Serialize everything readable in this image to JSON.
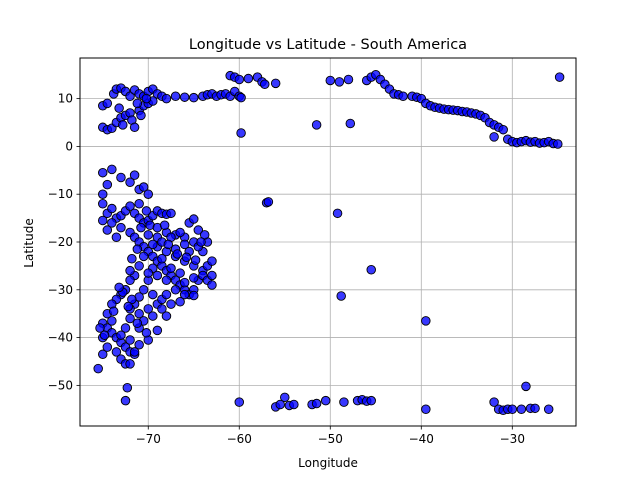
{
  "chart_data": {
    "type": "scatter",
    "title": "Longitude vs Latitude - South America",
    "xlabel": "Longitude",
    "ylabel": "Latitude",
    "xlim": [
      -77.5,
      -23.0
    ],
    "ylim": [
      -58.5,
      18.5
    ],
    "xticks": [
      -70,
      -60,
      -50,
      -40,
      -30
    ],
    "yticks": [
      -50,
      -40,
      -30,
      -20,
      -10,
      0,
      10
    ],
    "grid": true,
    "legend": "none",
    "marker_color": "#0000ff",
    "marker_edge": "#000000",
    "points": [
      [
        -75.0,
        8.5
      ],
      [
        -74.5,
        9.0
      ],
      [
        -73.8,
        11.0
      ],
      [
        -73.5,
        12.0
      ],
      [
        -73.0,
        12.2
      ],
      [
        -72.5,
        11.5
      ],
      [
        -72.0,
        10.5
      ],
      [
        -71.5,
        11.8
      ],
      [
        -71.0,
        11.0
      ],
      [
        -70.5,
        10.5
      ],
      [
        -70.0,
        11.5
      ],
      [
        -69.5,
        12.0
      ],
      [
        -69.0,
        11.0
      ],
      [
        -68.5,
        10.5
      ],
      [
        -68.0,
        10.0
      ],
      [
        -67.0,
        10.5
      ],
      [
        -66.0,
        10.3
      ],
      [
        -65.0,
        10.2
      ],
      [
        -64.0,
        10.5
      ],
      [
        -63.5,
        10.8
      ],
      [
        -63.0,
        11.0
      ],
      [
        -62.5,
        10.5
      ],
      [
        -62.0,
        10.8
      ],
      [
        -61.5,
        11.0
      ],
      [
        -61.0,
        10.5
      ],
      [
        -60.5,
        11.5
      ],
      [
        -60.0,
        10.5
      ],
      [
        -59.8,
        10.2
      ],
      [
        -61.0,
        14.8
      ],
      [
        -60.5,
        14.5
      ],
      [
        -60.0,
        14.0
      ],
      [
        -59.0,
        14.2
      ],
      [
        -58.0,
        14.5
      ],
      [
        -57.5,
        13.5
      ],
      [
        -57.2,
        13.0
      ],
      [
        -56.0,
        13.2
      ],
      [
        -50.0,
        13.8
      ],
      [
        -49.0,
        13.5
      ],
      [
        -48.0,
        14.0
      ],
      [
        -46.0,
        13.8
      ],
      [
        -45.5,
        14.5
      ],
      [
        -45.0,
        15.0
      ],
      [
        -44.5,
        14.0
      ],
      [
        -44.0,
        13.0
      ],
      [
        -43.5,
        12.0
      ],
      [
        -43.0,
        11.0
      ],
      [
        -42.5,
        10.8
      ],
      [
        -42.0,
        10.5
      ],
      [
        -41.0,
        10.5
      ],
      [
        -40.5,
        10.3
      ],
      [
        -40.0,
        10.0
      ],
      [
        -39.5,
        9.0
      ],
      [
        -39.0,
        8.5
      ],
      [
        -38.5,
        8.2
      ],
      [
        -38.0,
        8.0
      ],
      [
        -37.5,
        7.8
      ],
      [
        -37.0,
        7.7
      ],
      [
        -36.5,
        7.6
      ],
      [
        -36.0,
        7.5
      ],
      [
        -35.5,
        7.3
      ],
      [
        -35.0,
        7.2
      ],
      [
        -34.5,
        7.0
      ],
      [
        -34.0,
        6.8
      ],
      [
        -33.5,
        6.5
      ],
      [
        -33.0,
        6.0
      ],
      [
        -32.5,
        5.0
      ],
      [
        -32.0,
        4.5
      ],
      [
        -31.5,
        4.0
      ],
      [
        -31.0,
        3.5
      ],
      [
        -30.5,
        1.5
      ],
      [
        -30.0,
        1.0
      ],
      [
        -29.5,
        0.8
      ],
      [
        -29.0,
        1.0
      ],
      [
        -28.5,
        1.2
      ],
      [
        -28.0,
        0.9
      ],
      [
        -27.5,
        1.0
      ],
      [
        -27.0,
        0.7
      ],
      [
        -26.5,
        0.8
      ],
      [
        -26.0,
        1.0
      ],
      [
        -25.5,
        0.6
      ],
      [
        -25.0,
        0.5
      ],
      [
        -24.8,
        14.5
      ],
      [
        -32.0,
        2.0
      ],
      [
        -59.8,
        2.8
      ],
      [
        -51.5,
        4.5
      ],
      [
        -47.8,
        4.8
      ],
      [
        -75.0,
        4.0
      ],
      [
        -74.5,
        3.5
      ],
      [
        -74.0,
        3.8
      ],
      [
        -73.5,
        5.0
      ],
      [
        -73.0,
        6.0
      ],
      [
        -72.5,
        6.5
      ],
      [
        -72.0,
        7.0
      ],
      [
        -71.8,
        5.5
      ],
      [
        -71.5,
        4.0
      ],
      [
        -71.0,
        7.5
      ],
      [
        -70.5,
        8.5
      ],
      [
        -70.0,
        9.0
      ],
      [
        -69.5,
        9.5
      ],
      [
        -72.8,
        4.5
      ],
      [
        -73.2,
        8.0
      ],
      [
        -71.2,
        9.0
      ],
      [
        -70.8,
        6.5
      ],
      [
        -70.2,
        10.0
      ],
      [
        -75.0,
        -5.5
      ],
      [
        -74.5,
        -8.0
      ],
      [
        -75.0,
        -10.0
      ],
      [
        -74.0,
        -4.8
      ],
      [
        -73.0,
        -6.5
      ],
      [
        -72.0,
        -7.5
      ],
      [
        -71.5,
        -6.0
      ],
      [
        -71.0,
        -9.0
      ],
      [
        -70.5,
        -8.5
      ],
      [
        -70.0,
        -10.0
      ],
      [
        -75.0,
        -12.0
      ],
      [
        -74.5,
        -14.0
      ],
      [
        -74.0,
        -13.0
      ],
      [
        -73.5,
        -15.0
      ],
      [
        -73.0,
        -14.5
      ],
      [
        -72.5,
        -13.5
      ],
      [
        -72.0,
        -12.5
      ],
      [
        -71.5,
        -14.0
      ],
      [
        -71.0,
        -15.0
      ],
      [
        -70.5,
        -16.0
      ],
      [
        -70.0,
        -15.5
      ],
      [
        -69.5,
        -14.5
      ],
      [
        -69.0,
        -13.5
      ],
      [
        -68.5,
        -14.0
      ],
      [
        -68.0,
        -14.2
      ],
      [
        -67.5,
        -14.0
      ],
      [
        -75.0,
        -15.5
      ],
      [
        -74.0,
        -16.0
      ],
      [
        -73.0,
        -17.0
      ],
      [
        -72.0,
        -18.0
      ],
      [
        -71.5,
        -19.0
      ],
      [
        -71.0,
        -20.0
      ],
      [
        -70.5,
        -21.0
      ],
      [
        -70.0,
        -22.0
      ],
      [
        -69.5,
        -23.0
      ],
      [
        -69.0,
        -24.0
      ],
      [
        -68.5,
        -25.0
      ],
      [
        -68.0,
        -26.0
      ],
      [
        -67.5,
        -27.0
      ],
      [
        -67.0,
        -28.0
      ],
      [
        -66.5,
        -29.0
      ],
      [
        -66.0,
        -30.0
      ],
      [
        -65.5,
        -31.0
      ],
      [
        -65.0,
        -30.0
      ],
      [
        -64.5,
        -28.0
      ],
      [
        -64.0,
        -26.0
      ],
      [
        -63.5,
        -25.0
      ],
      [
        -63.0,
        -24.0
      ],
      [
        -64.0,
        -22.0
      ],
      [
        -65.0,
        -20.0
      ],
      [
        -66.0,
        -19.0
      ],
      [
        -67.0,
        -18.5
      ],
      [
        -68.0,
        -18.0
      ],
      [
        -69.0,
        -19.0
      ],
      [
        -70.0,
        -18.5
      ],
      [
        -69.0,
        -21.0
      ],
      [
        -68.0,
        -22.0
      ],
      [
        -67.0,
        -23.0
      ],
      [
        -66.0,
        -24.0
      ],
      [
        -65.0,
        -25.0
      ],
      [
        -64.0,
        -27.0
      ],
      [
        -63.5,
        -28.0
      ],
      [
        -63.0,
        -29.0
      ],
      [
        -63.0,
        -27.0
      ],
      [
        -63.5,
        -20.0
      ],
      [
        -64.5,
        -17.5
      ],
      [
        -65.5,
        -16.0
      ],
      [
        -65.0,
        -15.2
      ],
      [
        -66.5,
        -18.0
      ],
      [
        -67.5,
        -19.0
      ],
      [
        -68.5,
        -20.0
      ],
      [
        -69.5,
        -20.5
      ],
      [
        -70.5,
        -23.0
      ],
      [
        -71.0,
        -25.0
      ],
      [
        -71.5,
        -27.0
      ],
      [
        -72.0,
        -28.0
      ],
      [
        -72.5,
        -30.0
      ],
      [
        -73.0,
        -31.0
      ],
      [
        -73.5,
        -32.0
      ],
      [
        -74.0,
        -33.0
      ],
      [
        -74.5,
        -35.0
      ],
      [
        -75.0,
        -37.0
      ],
      [
        -74.5,
        -38.0
      ],
      [
        -74.0,
        -39.0
      ],
      [
        -73.5,
        -40.0
      ],
      [
        -73.0,
        -41.0
      ],
      [
        -72.5,
        -42.0
      ],
      [
        -72.0,
        -43.0
      ],
      [
        -71.5,
        -43.5
      ],
      [
        -73.0,
        -44.5
      ],
      [
        -72.5,
        -45.5
      ],
      [
        -72.0,
        -45.5
      ],
      [
        -72.3,
        -50.5
      ],
      [
        -72.5,
        -53.2
      ],
      [
        -75.5,
        -46.5
      ],
      [
        -75.0,
        -43.5
      ],
      [
        -74.5,
        -42.0
      ],
      [
        -75.0,
        -40.0
      ],
      [
        -75.3,
        -38.0
      ],
      [
        -74.0,
        -36.5
      ],
      [
        -72.0,
        -36.0
      ],
      [
        -71.0,
        -35.0
      ],
      [
        -70.0,
        -34.0
      ],
      [
        -69.0,
        -33.0
      ],
      [
        -68.5,
        -32.0
      ],
      [
        -68.0,
        -31.0
      ],
      [
        -67.0,
        -30.0
      ],
      [
        -66.0,
        -28.5
      ],
      [
        -65.0,
        -27.5
      ],
      [
        -69.5,
        -31.0
      ],
      [
        -70.5,
        -30.0
      ],
      [
        -70.0,
        -28.0
      ],
      [
        -69.0,
        -27.0
      ],
      [
        -68.0,
        -28.0
      ],
      [
        -67.5,
        -25.5
      ],
      [
        -66.5,
        -26.5
      ],
      [
        -65.5,
        -22.0
      ],
      [
        -64.5,
        -21.0
      ],
      [
        -66.0,
        -20.5
      ],
      [
        -67.0,
        -21.5
      ],
      [
        -68.5,
        -23.5
      ],
      [
        -69.5,
        -25.5
      ],
      [
        -70.0,
        -26.5
      ],
      [
        -71.0,
        -31.5
      ],
      [
        -71.5,
        -33.0
      ],
      [
        -72.0,
        -34.0
      ],
      [
        -72.5,
        -38.0
      ],
      [
        -73.0,
        -39.5
      ],
      [
        -71.0,
        -38.0
      ],
      [
        -70.5,
        -36.5
      ],
      [
        -69.5,
        -35.5
      ],
      [
        -68.5,
        -34.0
      ],
      [
        -67.5,
        -33.0
      ],
      [
        -66.5,
        -32.5
      ],
      [
        -66.0,
        -31.0
      ],
      [
        -65.0,
        -31.2
      ],
      [
        -69.0,
        -38.5
      ],
      [
        -68.0,
        -35.5
      ],
      [
        -70.0,
        -40.5
      ],
      [
        -71.0,
        -41.5
      ],
      [
        -72.0,
        -40.5
      ],
      [
        -73.5,
        -43.0
      ],
      [
        -71.5,
        -43.0
      ],
      [
        -72.8,
        -30.5
      ],
      [
        -73.2,
        -29.5
      ],
      [
        -72.0,
        -26.0
      ],
      [
        -71.8,
        -23.5
      ],
      [
        -71.2,
        -21.5
      ],
      [
        -73.5,
        -19.0
      ],
      [
        -74.5,
        -17.5
      ],
      [
        -70.8,
        -17.0
      ],
      [
        -69.8,
        -16.5
      ],
      [
        -70.2,
        -13.5
      ],
      [
        -71.0,
        -12.0
      ],
      [
        -69.0,
        -17.0
      ],
      [
        -68.2,
        -16.5
      ],
      [
        -67.8,
        -20.5
      ],
      [
        -66.8,
        -22.5
      ],
      [
        -65.8,
        -23.2
      ],
      [
        -64.8,
        -23.8
      ],
      [
        -63.8,
        -18.5
      ],
      [
        -64.2,
        -20.0
      ],
      [
        -70.2,
        -39.0
      ],
      [
        -71.2,
        -37.0
      ],
      [
        -71.8,
        -32.0
      ],
      [
        -72.2,
        -33.5
      ],
      [
        -73.8,
        -34.5
      ],
      [
        -74.8,
        -39.5
      ],
      [
        -60.0,
        -53.5
      ],
      [
        -56.0,
        -54.5
      ],
      [
        -55.5,
        -54.0
      ],
      [
        -55.0,
        -52.5
      ],
      [
        -54.5,
        -54.2
      ],
      [
        -54.0,
        -54.0
      ],
      [
        -52.0,
        -54.0
      ],
      [
        -51.5,
        -53.8
      ],
      [
        -50.5,
        -53.2
      ],
      [
        -48.5,
        -53.5
      ],
      [
        -47.0,
        -53.2
      ],
      [
        -46.5,
        -53.0
      ],
      [
        -46.0,
        -53.3
      ],
      [
        -45.5,
        -53.2
      ],
      [
        -32.0,
        -53.5
      ],
      [
        -31.5,
        -55.0
      ],
      [
        -31.0,
        -55.2
      ],
      [
        -30.5,
        -55.0
      ],
      [
        -30.0,
        -55.0
      ],
      [
        -29.0,
        -55.0
      ],
      [
        -28.0,
        -54.8
      ],
      [
        -27.5,
        -54.8
      ],
      [
        -28.5,
        -50.2
      ],
      [
        -26.0,
        -55.0
      ],
      [
        -39.5,
        -55.0
      ],
      [
        -39.5,
        -36.5
      ],
      [
        -45.5,
        -25.8
      ],
      [
        -48.8,
        -31.3
      ],
      [
        -49.2,
        -14.0
      ],
      [
        -57.0,
        -11.8
      ],
      [
        -56.8,
        -11.6
      ]
    ]
  }
}
